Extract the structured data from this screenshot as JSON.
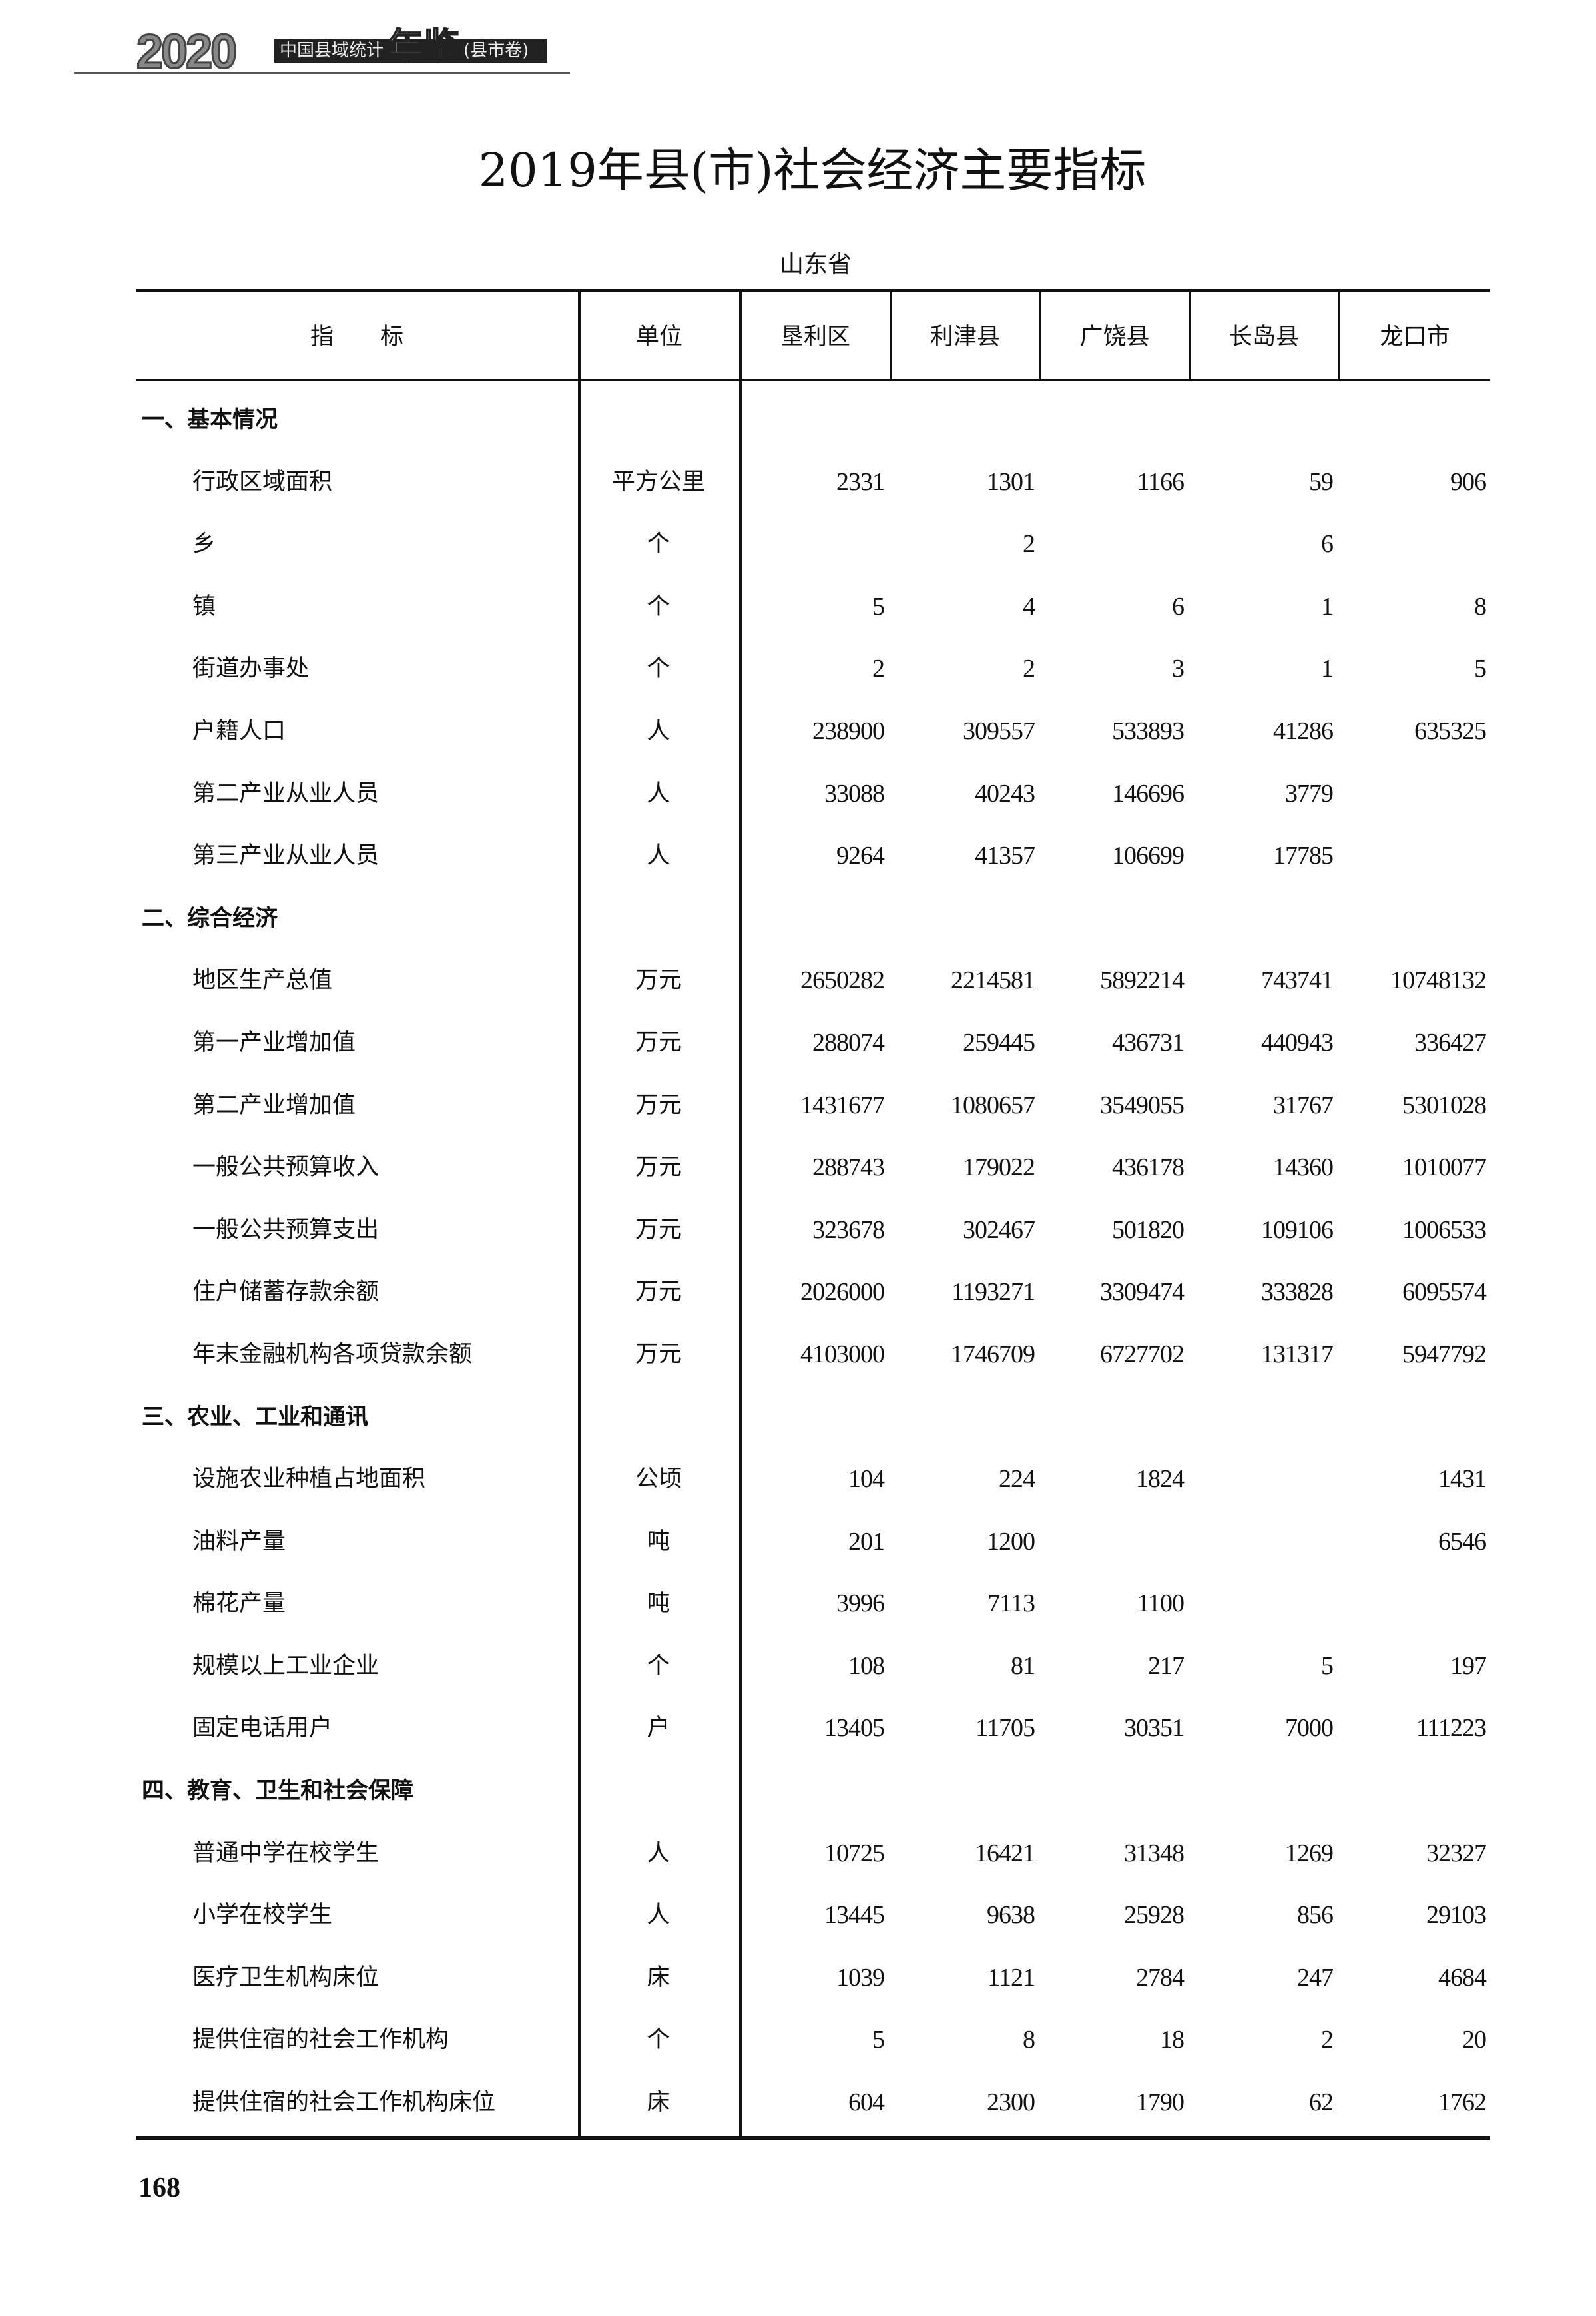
{
  "header": {
    "year": "2020",
    "book_title": "中国县域统计",
    "book_title_big": "年鉴",
    "volume": "(县市卷)"
  },
  "title": "2019年县(市)社会经济主要指标",
  "province": "山东省",
  "columns": {
    "indicator": "指　　标",
    "unit": "单位",
    "regions": [
      "垦利区",
      "利津县",
      "广饶县",
      "长岛县",
      "龙口市"
    ]
  },
  "sections": [
    {
      "title": "一、基本情况",
      "rows": [
        {
          "name": "行政区域面积",
          "unit": "平方公里",
          "values": [
            "2331",
            "1301",
            "1166",
            "59",
            "906"
          ]
        },
        {
          "name": "乡",
          "unit": "个",
          "values": [
            "",
            "2",
            "",
            "6",
            ""
          ]
        },
        {
          "name": "镇",
          "unit": "个",
          "values": [
            "5",
            "4",
            "6",
            "1",
            "8"
          ]
        },
        {
          "name": "街道办事处",
          "unit": "个",
          "values": [
            "2",
            "2",
            "3",
            "1",
            "5"
          ]
        },
        {
          "name": "户籍人口",
          "unit": "人",
          "values": [
            "238900",
            "309557",
            "533893",
            "41286",
            "635325"
          ]
        },
        {
          "name": "第二产业从业人员",
          "unit": "人",
          "values": [
            "33088",
            "40243",
            "146696",
            "3779",
            ""
          ]
        },
        {
          "name": "第三产业从业人员",
          "unit": "人",
          "values": [
            "9264",
            "41357",
            "106699",
            "17785",
            ""
          ]
        }
      ]
    },
    {
      "title": "二、综合经济",
      "rows": [
        {
          "name": "地区生产总值",
          "unit": "万元",
          "values": [
            "2650282",
            "2214581",
            "5892214",
            "743741",
            "10748132"
          ]
        },
        {
          "name": "第一产业增加值",
          "unit": "万元",
          "values": [
            "288074",
            "259445",
            "436731",
            "440943",
            "336427"
          ]
        },
        {
          "name": "第二产业增加值",
          "unit": "万元",
          "values": [
            "1431677",
            "1080657",
            "3549055",
            "31767",
            "5301028"
          ]
        },
        {
          "name": "一般公共预算收入",
          "unit": "万元",
          "values": [
            "288743",
            "179022",
            "436178",
            "14360",
            "1010077"
          ]
        },
        {
          "name": "一般公共预算支出",
          "unit": "万元",
          "values": [
            "323678",
            "302467",
            "501820",
            "109106",
            "1006533"
          ]
        },
        {
          "name": "住户储蓄存款余额",
          "unit": "万元",
          "values": [
            "2026000",
            "1193271",
            "3309474",
            "333828",
            "6095574"
          ]
        },
        {
          "name": "年末金融机构各项贷款余额",
          "unit": "万元",
          "values": [
            "4103000",
            "1746709",
            "6727702",
            "131317",
            "5947792"
          ]
        }
      ]
    },
    {
      "title": "三、农业、工业和通讯",
      "rows": [
        {
          "name": "设施农业种植占地面积",
          "unit": "公顷",
          "values": [
            "104",
            "224",
            "1824",
            "",
            "1431"
          ]
        },
        {
          "name": "油料产量",
          "unit": "吨",
          "values": [
            "201",
            "1200",
            "",
            "",
            "6546"
          ]
        },
        {
          "name": "棉花产量",
          "unit": "吨",
          "values": [
            "3996",
            "7113",
            "1100",
            "",
            ""
          ]
        },
        {
          "name": "规模以上工业企业",
          "unit": "个",
          "values": [
            "108",
            "81",
            "217",
            "5",
            "197"
          ]
        },
        {
          "name": "固定电话用户",
          "unit": "户",
          "values": [
            "13405",
            "11705",
            "30351",
            "7000",
            "111223"
          ]
        }
      ]
    },
    {
      "title": "四、教育、卫生和社会保障",
      "rows": [
        {
          "name": "普通中学在校学生",
          "unit": "人",
          "values": [
            "10725",
            "16421",
            "31348",
            "1269",
            "32327"
          ]
        },
        {
          "name": "小学在校学生",
          "unit": "人",
          "values": [
            "13445",
            "9638",
            "25928",
            "856",
            "29103"
          ]
        },
        {
          "name": "医疗卫生机构床位",
          "unit": "床",
          "values": [
            "1039",
            "1121",
            "2784",
            "247",
            "4684"
          ]
        },
        {
          "name": "提供住宿的社会工作机构",
          "unit": "个",
          "values": [
            "5",
            "8",
            "18",
            "2",
            "20"
          ]
        },
        {
          "name": "提供住宿的社会工作机构床位",
          "unit": "床",
          "values": [
            "604",
            "2300",
            "1790",
            "62",
            "1762"
          ]
        }
      ]
    }
  ],
  "page_number": "168"
}
